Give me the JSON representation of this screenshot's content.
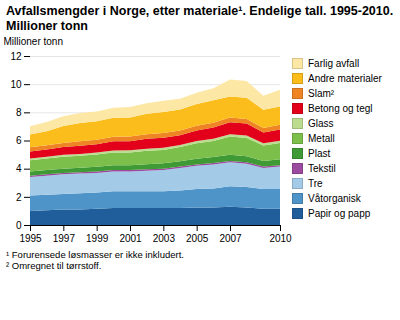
{
  "chart_data": {
    "type": "area",
    "stacked": true,
    "grid": true,
    "legend": "right",
    "title": "Avfallsmengder i Norge, etter materiale¹. Endelige tall. 1995-2010. Millioner tonn",
    "y_label": "Millioner tonn",
    "footnotes": [
      "¹ Forurensede løsmasser er ikke inkludert.",
      "² Omregnet til tørrstoff."
    ],
    "x": [
      1995,
      1996,
      1997,
      1998,
      1999,
      2000,
      2001,
      2002,
      2003,
      2004,
      2005,
      2006,
      2007,
      2008,
      2009,
      2010
    ],
    "xlim": [
      1995,
      2010
    ],
    "xticks": [
      1995,
      1997,
      1999,
      2001,
      2003,
      2005,
      2007,
      2010
    ],
    "ylim": [
      0,
      12
    ],
    "yticks": [
      0,
      2,
      4,
      6,
      8,
      10,
      12
    ],
    "series": [
      {
        "name": "Papir og papp",
        "color": "#1f5e9a",
        "values": [
          1.0,
          1.05,
          1.1,
          1.1,
          1.15,
          1.2,
          1.2,
          1.2,
          1.2,
          1.2,
          1.25,
          1.25,
          1.3,
          1.25,
          1.15,
          1.15
        ]
      },
      {
        "name": "Våtorganisk",
        "color": "#4f94c9",
        "values": [
          1.1,
          1.1,
          1.1,
          1.15,
          1.15,
          1.2,
          1.2,
          1.2,
          1.2,
          1.25,
          1.3,
          1.35,
          1.45,
          1.45,
          1.4,
          1.4
        ]
      },
      {
        "name": "Tre",
        "color": "#a3cbe8",
        "values": [
          1.3,
          1.35,
          1.4,
          1.4,
          1.4,
          1.4,
          1.4,
          1.45,
          1.5,
          1.6,
          1.65,
          1.7,
          1.7,
          1.65,
          1.5,
          1.6
        ]
      },
      {
        "name": "Tekstil",
        "color": "#9b4a9f",
        "values": [
          0.1,
          0.1,
          0.1,
          0.1,
          0.1,
          0.1,
          0.1,
          0.1,
          0.1,
          0.1,
          0.1,
          0.1,
          0.1,
          0.1,
          0.1,
          0.1
        ]
      },
      {
        "name": "Plast",
        "color": "#3f9a35",
        "values": [
          0.3,
          0.3,
          0.3,
          0.32,
          0.33,
          0.35,
          0.35,
          0.37,
          0.38,
          0.38,
          0.4,
          0.42,
          0.43,
          0.43,
          0.4,
          0.42
        ]
      },
      {
        "name": "Metall",
        "color": "#7cbf4a",
        "values": [
          0.8,
          0.82,
          0.85,
          0.85,
          0.87,
          0.9,
          0.9,
          0.95,
          0.95,
          1.0,
          1.1,
          1.15,
          1.3,
          1.3,
          1.1,
          1.15
        ]
      },
      {
        "name": "Glass",
        "color": "#bcdc8f",
        "values": [
          0.12,
          0.12,
          0.13,
          0.13,
          0.14,
          0.14,
          0.15,
          0.15,
          0.15,
          0.15,
          0.16,
          0.16,
          0.17,
          0.17,
          0.16,
          0.16
        ]
      },
      {
        "name": "Betong og tegl",
        "color": "#e2001a",
        "values": [
          0.5,
          0.52,
          0.55,
          0.58,
          0.6,
          0.65,
          0.65,
          0.7,
          0.72,
          0.7,
          0.75,
          0.8,
          0.85,
          0.85,
          0.75,
          0.8
        ]
      },
      {
        "name": "Slam²",
        "color": "#ef8424",
        "values": [
          0.3,
          0.3,
          0.3,
          0.32,
          0.32,
          0.33,
          0.33,
          0.33,
          0.33,
          0.33,
          0.33,
          0.33,
          0.33,
          0.33,
          0.32,
          0.33
        ]
      },
      {
        "name": "Andre materialer",
        "color": "#fbbd1c",
        "values": [
          0.9,
          1.0,
          1.2,
          1.3,
          1.3,
          1.35,
          1.35,
          1.45,
          1.5,
          1.5,
          1.55,
          1.6,
          1.5,
          1.5,
          1.3,
          1.3
        ]
      },
      {
        "name": "Farlig avfall",
        "color": "#fde7a4",
        "values": [
          0.6,
          0.65,
          0.7,
          0.7,
          0.7,
          0.7,
          0.75,
          0.75,
          0.8,
          0.75,
          0.8,
          0.85,
          1.2,
          1.2,
          1.0,
          1.2
        ]
      }
    ]
  }
}
